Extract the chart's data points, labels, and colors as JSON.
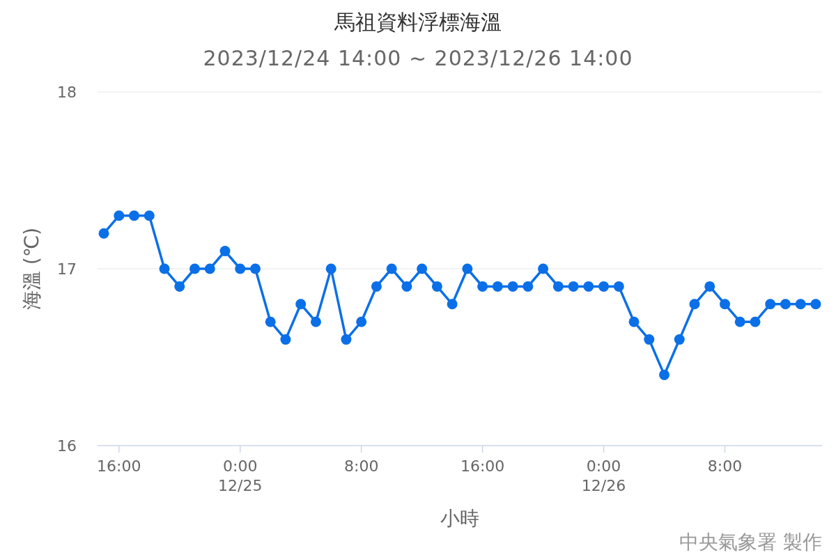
{
  "chart_data": {
    "type": "line",
    "title": "馬祖資料浮標海溫",
    "subtitle": "2023/12/24 14:00 ~ 2023/12/26 14:00",
    "xlabel": "小時",
    "ylabel": "海溫 (℃)",
    "annotations": [
      "中央氣象署 製作"
    ],
    "x": [
      "2023-12-24T15:00",
      "2023-12-24T16:00",
      "2023-12-24T17:00",
      "2023-12-24T18:00",
      "2023-12-24T19:00",
      "2023-12-24T20:00",
      "2023-12-24T21:00",
      "2023-12-24T22:00",
      "2023-12-24T23:00",
      "2023-12-25T00:00",
      "2023-12-25T01:00",
      "2023-12-25T02:00",
      "2023-12-25T03:00",
      "2023-12-25T04:00",
      "2023-12-25T05:00",
      "2023-12-25T06:00",
      "2023-12-25T07:00",
      "2023-12-25T08:00",
      "2023-12-25T09:00",
      "2023-12-25T10:00",
      "2023-12-25T11:00",
      "2023-12-25T12:00",
      "2023-12-25T13:00",
      "2023-12-25T14:00",
      "2023-12-25T15:00",
      "2023-12-25T16:00",
      "2023-12-25T17:00",
      "2023-12-25T18:00",
      "2023-12-25T19:00",
      "2023-12-25T20:00",
      "2023-12-25T21:00",
      "2023-12-25T22:00",
      "2023-12-25T23:00",
      "2023-12-26T00:00",
      "2023-12-26T01:00",
      "2023-12-26T02:00",
      "2023-12-26T03:00",
      "2023-12-26T04:00",
      "2023-12-26T05:00",
      "2023-12-26T06:00",
      "2023-12-26T07:00",
      "2023-12-26T08:00",
      "2023-12-26T09:00",
      "2023-12-26T10:00",
      "2023-12-26T11:00",
      "2023-12-26T12:00",
      "2023-12-26T13:00",
      "2023-12-26T14:00"
    ],
    "series": [
      {
        "color": "#0b6fe8",
        "values": [
          17.2,
          17.3,
          17.3,
          17.3,
          17.0,
          16.9,
          17.0,
          17.0,
          17.1,
          17.0,
          17.0,
          16.7,
          16.6,
          16.8,
          16.7,
          17.0,
          16.6,
          16.7,
          16.9,
          17.0,
          16.9,
          17.0,
          16.9,
          16.8,
          17.0,
          16.9,
          16.9,
          16.9,
          16.9,
          17.0,
          16.9,
          16.9,
          16.9,
          16.9,
          16.9,
          16.7,
          16.6,
          16.4,
          16.6,
          16.8,
          16.9,
          16.8,
          16.7,
          16.7,
          16.8,
          16.8,
          16.8,
          16.8
        ]
      }
    ],
    "xlim": [
      "2023-12-24T14:35",
      "2023-12-26T14:25"
    ],
    "xticks": [
      {
        "value": "2023-12-24T16:00",
        "label": "16:00"
      },
      {
        "value": "2023-12-25T00:00",
        "label": "0:00\n12/25"
      },
      {
        "value": "2023-12-25T08:00",
        "label": "8:00"
      },
      {
        "value": "2023-12-25T16:00",
        "label": "16:00"
      },
      {
        "value": "2023-12-26T00:00",
        "label": "0:00\n12/26"
      },
      {
        "value": "2023-12-26T08:00",
        "label": "8:00"
      }
    ],
    "ylim": [
      16,
      18
    ],
    "yticks": [
      16,
      17,
      18
    ],
    "grid": "y",
    "marker": "circle",
    "line_style": "solid"
  }
}
